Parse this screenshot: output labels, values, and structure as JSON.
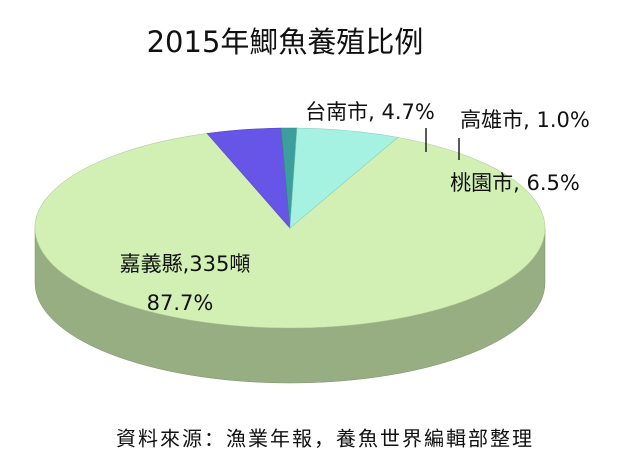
{
  "chart_data": {
    "type": "pie",
    "title": "2015年鯽魚養殖比例",
    "categories": [
      "嘉義縣,335噸",
      "台南市, 4.7%",
      "高雄市, 1.0%",
      "桃園市, 6.5%"
    ],
    "values": [
      87.7,
      4.7,
      1.0,
      6.5
    ],
    "value_labels": [
      "87.7%",
      null,
      null,
      null
    ],
    "colors": [
      "#d2f0b4",
      "#6655e6",
      "#3d9e9e",
      "#a6f2e2"
    ],
    "source": "資料來源：漁業年報，養魚世界編輯部整理"
  }
}
